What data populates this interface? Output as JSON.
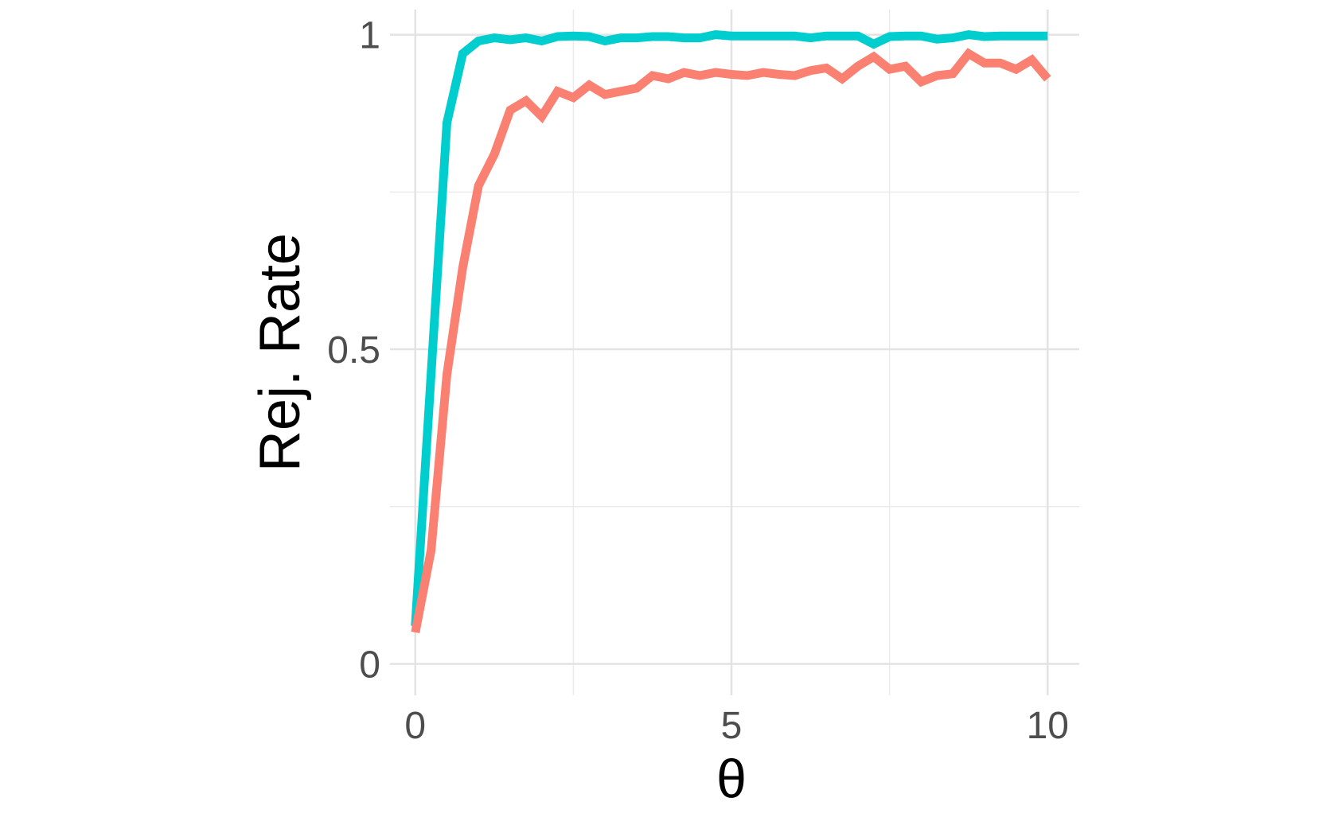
{
  "chart_data": {
    "type": "line",
    "title": "",
    "xlabel": "θ",
    "ylabel": "Rej. Rate",
    "xlim": [
      -0.4,
      10.5
    ],
    "ylim": [
      -0.05,
      1.04
    ],
    "x_ticks": [
      0,
      5,
      10
    ],
    "x_tick_labels": [
      "0",
      "5",
      "10"
    ],
    "y_ticks": [
      0,
      0.5,
      1
    ],
    "y_tick_labels": [
      "0",
      "0.5",
      "1"
    ],
    "grid": true,
    "legend": "none",
    "x": [
      0,
      0.25,
      0.5,
      0.75,
      1,
      1.25,
      1.5,
      1.75,
      2,
      2.25,
      2.5,
      2.75,
      3,
      3.25,
      3.5,
      3.75,
      4,
      4.25,
      4.5,
      4.75,
      5,
      5.25,
      5.5,
      5.75,
      6,
      6.25,
      6.5,
      6.75,
      7,
      7.25,
      7.5,
      7.75,
      8,
      8.25,
      8.5,
      8.75,
      9,
      9.25,
      9.5,
      9.75,
      10
    ],
    "series": [
      {
        "color": "#00CDCD",
        "values": [
          0.06,
          0.46,
          0.86,
          0.97,
          0.99,
          0.995,
          0.992,
          0.995,
          0.99,
          0.997,
          0.998,
          0.997,
          0.99,
          0.995,
          0.995,
          0.997,
          0.997,
          0.995,
          0.995,
          1.0,
          0.998,
          0.998,
          0.998,
          0.998,
          0.998,
          0.995,
          0.998,
          0.998,
          0.998,
          0.985,
          0.997,
          0.998,
          0.998,
          0.993,
          0.995,
          1.0,
          0.997,
          0.998,
          0.998,
          0.998,
          0.998
        ]
      },
      {
        "color": "#FA8072",
        "values": [
          0.05,
          0.18,
          0.46,
          0.63,
          0.76,
          0.81,
          0.88,
          0.895,
          0.87,
          0.91,
          0.9,
          0.92,
          0.905,
          0.91,
          0.915,
          0.935,
          0.93,
          0.94,
          0.935,
          0.94,
          0.937,
          0.935,
          0.94,
          0.937,
          0.935,
          0.943,
          0.947,
          0.93,
          0.95,
          0.965,
          0.945,
          0.95,
          0.925,
          0.935,
          0.938,
          0.97,
          0.955,
          0.955,
          0.945,
          0.96,
          0.93
        ]
      }
    ]
  }
}
